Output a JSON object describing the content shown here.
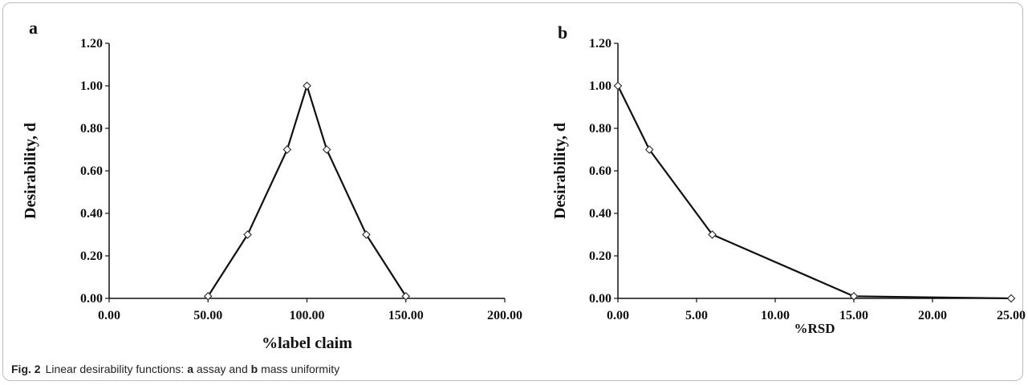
{
  "chart_data": [
    {
      "type": "line",
      "panel_label": "a",
      "xlabel": "%label claim",
      "ylabel": "Desirability, d",
      "xlim": [
        0,
        200
      ],
      "ylim": [
        0,
        1.2
      ],
      "xticks": [
        "0.00",
        "50.00",
        "100.00",
        "150.00",
        "200.00"
      ],
      "yticks": [
        "0.00",
        "0.20",
        "0.40",
        "0.60",
        "0.80",
        "1.00",
        "1.20"
      ],
      "grid": false,
      "marker": "diamond",
      "x": [
        50,
        70,
        90,
        100,
        110,
        130,
        150
      ],
      "y": [
        0.01,
        0.3,
        0.7,
        1.0,
        0.7,
        0.3,
        0.01
      ]
    },
    {
      "type": "line",
      "panel_label": "b",
      "xlabel": "%RSD",
      "ylabel": "Desirability, d",
      "xlim": [
        0,
        25
      ],
      "ylim": [
        0,
        1.2
      ],
      "xticks": [
        "0.00",
        "5.00",
        "10.00",
        "15.00",
        "20.00",
        "25.00"
      ],
      "yticks": [
        "0.00",
        "0.20",
        "0.40",
        "0.60",
        "0.80",
        "1.00",
        "1.20"
      ],
      "grid": false,
      "marker": "diamond",
      "x": [
        0,
        2,
        6,
        15,
        25
      ],
      "y": [
        1.0,
        0.7,
        0.3,
        0.01,
        0.0
      ]
    }
  ],
  "caption": {
    "fig_number": "Fig. 2",
    "text_1": "Linear desirability functions: ",
    "bold_a": "a",
    "text_2": " assay and ",
    "bold_b": "b",
    "text_3": " mass uniformity"
  }
}
